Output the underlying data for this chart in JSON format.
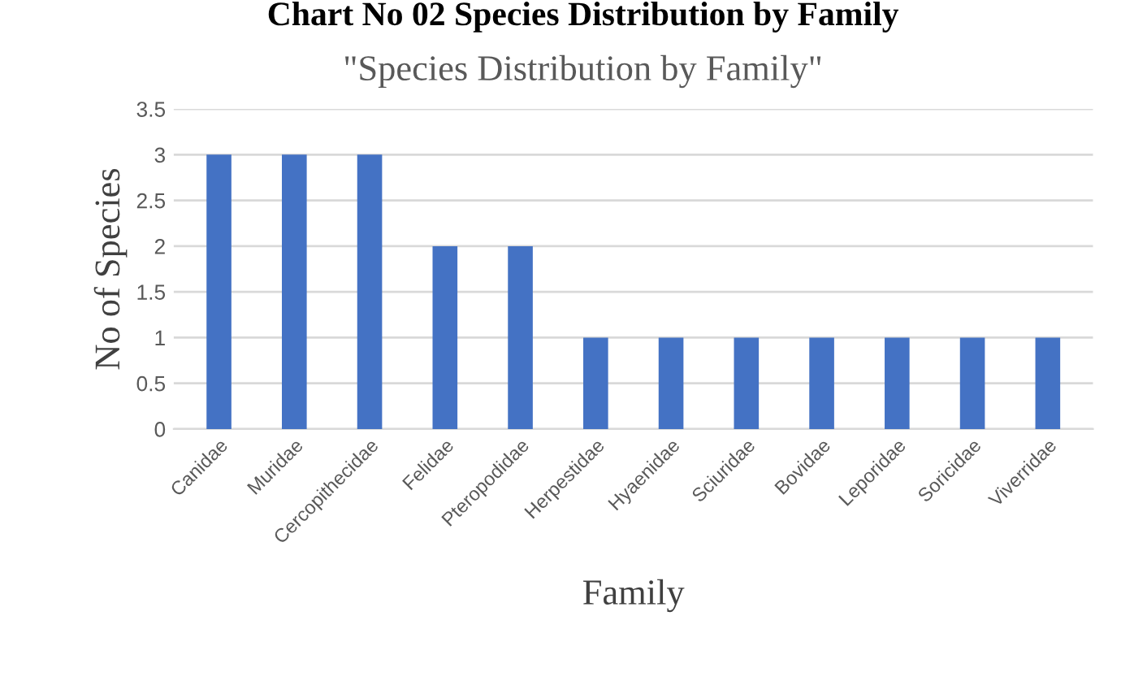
{
  "chart_data": {
    "type": "bar",
    "title": "\"Species Distribution by Family\"",
    "annotations": [
      "Chart No 02 Species Distribution by Family"
    ],
    "xlabel": "Family",
    "ylabel": "No of Species",
    "categories": [
      "Canidae",
      "Muridae",
      "Cercopithecidae",
      "Felidae",
      "Pteropodidae",
      "Herpestidae",
      "Hyaenidae",
      "Sciuridae",
      "Bovidae",
      "Leporidae",
      "Soricidae",
      "Viverridae"
    ],
    "values": [
      3,
      3,
      3,
      2,
      2,
      1,
      1,
      1,
      1,
      1,
      1,
      1
    ],
    "color": "#4472c4",
    "ylim": [
      0,
      3.5
    ],
    "yticks": [
      0,
      0.5,
      1,
      1.5,
      2,
      2.5,
      3,
      3.5
    ],
    "grid": "y"
  }
}
